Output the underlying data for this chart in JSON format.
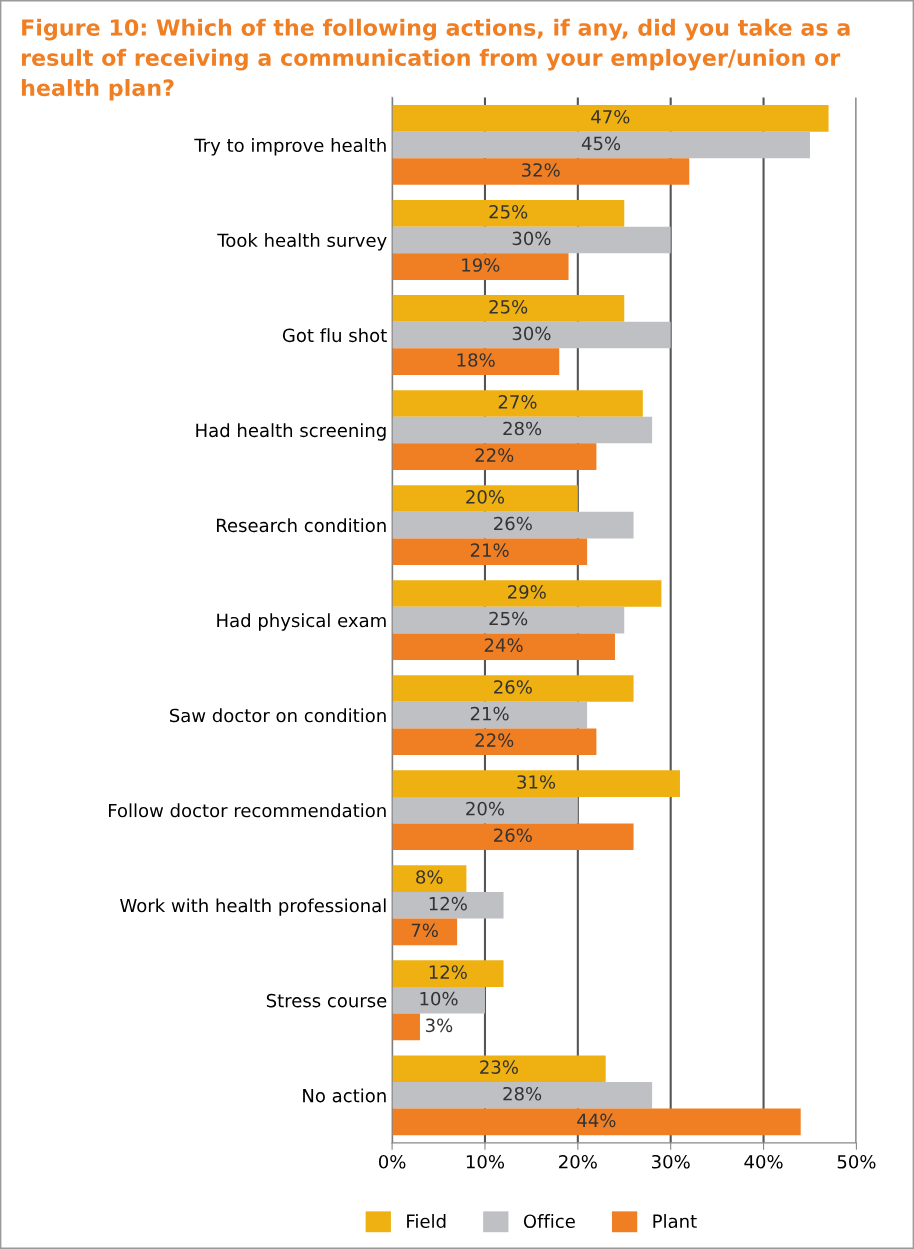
{
  "chart_data": {
    "type": "bar",
    "orientation": "horizontal",
    "title": "Figure 10: Which of the following actions, if any, did you take as a result of receiving a communication from your employer/union or health plan?",
    "categories": [
      "Try to improve health",
      "Took health survey",
      "Got flu shot",
      "Had health screening",
      "Research condition",
      "Had physical exam",
      "Saw doctor on condition",
      "Follow doctor recommendation",
      "Work with health professional",
      "Stress course",
      "No action"
    ],
    "series": [
      {
        "name": "Field",
        "color": "#efb112",
        "values": [
          47,
          25,
          25,
          27,
          20,
          29,
          26,
          31,
          8,
          12,
          23
        ],
        "value_labels": [
          "47%",
          "25%",
          "25%",
          "27%",
          "20%",
          "29%",
          "26%",
          "31%",
          "8%",
          "12%",
          "23%"
        ]
      },
      {
        "name": "Office",
        "color": "#bfc0c4",
        "values": [
          45,
          30,
          30,
          28,
          26,
          25,
          21,
          20,
          12,
          10,
          28
        ],
        "value_labels": [
          "45%",
          "30%",
          "30%",
          "28%",
          "26%",
          "25%",
          "21%",
          "20%",
          "12%",
          "10%",
          "28%"
        ]
      },
      {
        "name": "Plant",
        "color": "#f07f24",
        "values": [
          32,
          19,
          18,
          22,
          21,
          24,
          22,
          26,
          7,
          3,
          44
        ],
        "value_labels": [
          "32%",
          "19%",
          "18%",
          "22%",
          "21%",
          "24%",
          "22%",
          "26%",
          "7%",
          "3%",
          "44%"
        ]
      }
    ],
    "xlim": [
      0,
      50
    ],
    "xticks": [
      {
        "value": 0,
        "label": "0%"
      },
      {
        "value": 10,
        "label": "10%"
      },
      {
        "value": 20,
        "label": "20%"
      },
      {
        "value": 30,
        "label": "30%"
      },
      {
        "value": 40,
        "label": "40%"
      },
      {
        "value": 50,
        "label": "50%"
      }
    ],
    "grid": "x",
    "legend": "bottom"
  }
}
